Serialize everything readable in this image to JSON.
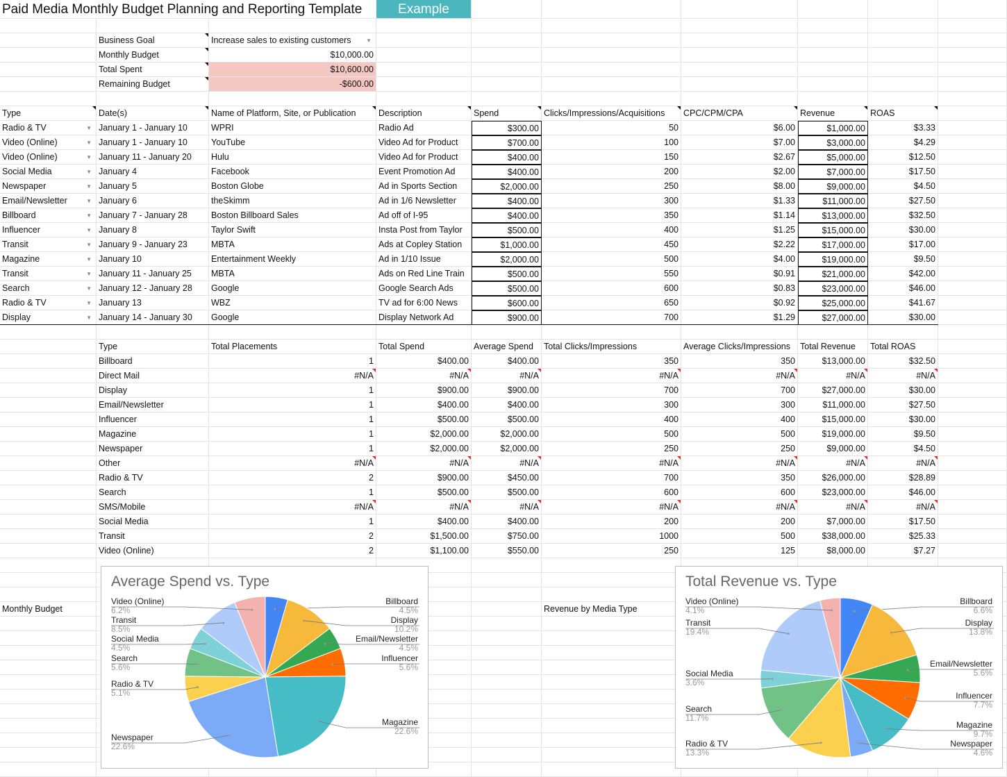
{
  "title": "Paid Media Monthly Budget Planning and Reporting Template",
  "example_label": "Example",
  "summary": [
    {
      "label": "Business Goal",
      "value": "Increase sales to existing customers",
      "dropdown": true
    },
    {
      "label": "Monthly Budget",
      "value": "$10,000.00"
    },
    {
      "label": "Total Spent",
      "value": "$10,600.00",
      "highlight": true
    },
    {
      "label": "Remaining Budget",
      "value": "-$600.00",
      "highlight": true
    }
  ],
  "main_table": {
    "headers": [
      "Type",
      "Date(s)",
      "Name of Platform, Site, or Publication",
      "Description",
      "Spend",
      "Clicks/Impressions/Acquisitions",
      "CPC/CPM/CPA",
      "Revenue",
      "ROAS"
    ],
    "rows": [
      [
        "Radio & TV",
        "January 1 - January 10",
        "WPRI",
        "Radio Ad",
        "$300.00",
        "50",
        "$6.00",
        "$1,000.00",
        "$3.33"
      ],
      [
        "Video (Online)",
        "January 1 - January 10",
        "YouTube",
        "Video Ad for Product",
        "$700.00",
        "100",
        "$7.00",
        "$3,000.00",
        "$4.29"
      ],
      [
        "Video (Online)",
        "January 11 - January 20",
        "Hulu",
        "Video Ad for Product",
        "$400.00",
        "150",
        "$2.67",
        "$5,000.00",
        "$12.50"
      ],
      [
        "Social Media",
        "January 4",
        "Facebook",
        "Event Promotion Ad",
        "$400.00",
        "200",
        "$2.00",
        "$7,000.00",
        "$17.50"
      ],
      [
        "Newspaper",
        "January 5",
        "Boston Globe",
        "Ad in Sports Section",
        "$2,000.00",
        "250",
        "$8.00",
        "$9,000.00",
        "$4.50"
      ],
      [
        "Email/Newsletter",
        "January 6",
        "theSkimm",
        "Ad in 1/6 Newsletter",
        "$400.00",
        "300",
        "$1.33",
        "$11,000.00",
        "$27.50"
      ],
      [
        "Billboard",
        "January 7 - January 28",
        "Boston Billboard Sales",
        "Ad off of I-95",
        "$400.00",
        "350",
        "$1.14",
        "$13,000.00",
        "$32.50"
      ],
      [
        "Influencer",
        "January 8",
        "Taylor Swift",
        "Insta Post from Taylor",
        "$500.00",
        "400",
        "$1.25",
        "$15,000.00",
        "$30.00"
      ],
      [
        "Transit",
        "January 9 - January 23",
        "MBTA",
        "Ads at Copley Station",
        "$1,000.00",
        "450",
        "$2.22",
        "$17,000.00",
        "$17.00"
      ],
      [
        "Magazine",
        "January 10",
        "Entertainment Weekly",
        "Ad in 1/10 Issue",
        "$2,000.00",
        "500",
        "$4.00",
        "$19,000.00",
        "$9.50"
      ],
      [
        "Transit",
        "January 11 - January 25",
        "MBTA",
        "Ads on Red Line Train",
        "$500.00",
        "550",
        "$0.91",
        "$21,000.00",
        "$42.00"
      ],
      [
        "Search",
        "January 12 - January 28",
        "Google",
        "Google Search Ads",
        "$500.00",
        "600",
        "$0.83",
        "$23,000.00",
        "$46.00"
      ],
      [
        "Radio & TV",
        "January 13",
        "WBZ",
        "TV ad for 6:00 News",
        "$600.00",
        "650",
        "$0.92",
        "$25,000.00",
        "$41.67"
      ],
      [
        "Display",
        "January 14 - January 30",
        "Google",
        "Display Network Ad",
        "$900.00",
        "700",
        "$1.29",
        "$27,000.00",
        "$30.00"
      ]
    ]
  },
  "type_table": {
    "headers": [
      "Type",
      "Total Placements",
      "Total Spend",
      "Average Spend",
      "Total Clicks/Impressions",
      "Average Clicks/Impressions",
      "Total Revenue",
      "Total ROAS"
    ],
    "rows": [
      [
        "Billboard",
        "1",
        "$400.00",
        "$400.00",
        "350",
        "350",
        "$13,000.00",
        "$32.50"
      ],
      [
        "Direct Mail",
        "#N/A",
        "#N/A",
        "#N/A",
        "#N/A",
        "#N/A",
        "#N/A",
        "#N/A"
      ],
      [
        "Display",
        "1",
        "$900.00",
        "$900.00",
        "700",
        "700",
        "$27,000.00",
        "$30.00"
      ],
      [
        "Email/Newsletter",
        "1",
        "$400.00",
        "$400.00",
        "300",
        "300",
        "$11,000.00",
        "$27.50"
      ],
      [
        "Influencer",
        "1",
        "$500.00",
        "$500.00",
        "400",
        "400",
        "$15,000.00",
        "$30.00"
      ],
      [
        "Magazine",
        "1",
        "$2,000.00",
        "$2,000.00",
        "500",
        "500",
        "$19,000.00",
        "$9.50"
      ],
      [
        "Newspaper",
        "1",
        "$2,000.00",
        "$2,000.00",
        "250",
        "250",
        "$9,000.00",
        "$4.50"
      ],
      [
        "Other",
        "#N/A",
        "#N/A",
        "#N/A",
        "#N/A",
        "#N/A",
        "#N/A",
        "#N/A"
      ],
      [
        "Radio & TV",
        "2",
        "$900.00",
        "$450.00",
        "700",
        "350",
        "$26,000.00",
        "$28.89"
      ],
      [
        "Search",
        "1",
        "$500.00",
        "$500.00",
        "600",
        "600",
        "$23,000.00",
        "$46.00"
      ],
      [
        "SMS/Mobile",
        "#N/A",
        "#N/A",
        "#N/A",
        "#N/A",
        "#N/A",
        "#N/A",
        "#N/A"
      ],
      [
        "Social Media",
        "1",
        "$400.00",
        "$400.00",
        "200",
        "200",
        "$7,000.00",
        "$17.50"
      ],
      [
        "Transit",
        "2",
        "$1,500.00",
        "$750.00",
        "1000",
        "500",
        "$38,000.00",
        "$25.33"
      ],
      [
        "Video (Online)",
        "2",
        "$1,100.00",
        "$550.00",
        "250",
        "125",
        "$8,000.00",
        "$7.27"
      ]
    ]
  },
  "chart_labels": {
    "left": "Monthly Budget",
    "right": "Revenue by Media Type"
  },
  "chart_data": [
    {
      "type": "pie",
      "title": "Average Spend vs. Type",
      "categories": [
        "Billboard",
        "Display",
        "Email/Newsletter",
        "Influencer",
        "Magazine",
        "Newspaper",
        "Radio & TV",
        "Search",
        "Social Media",
        "Transit",
        "Video (Online)"
      ],
      "values": [
        4.5,
        10.2,
        4.5,
        5.6,
        22.6,
        22.6,
        5.1,
        5.6,
        4.5,
        8.5,
        6.2
      ],
      "labels": [
        "4.5%",
        "10.2%",
        "4.5%",
        "5.6%",
        "22.6%",
        "22.6%",
        "5.1%",
        "5.6%",
        "4.5%",
        "8.5%",
        "6.2%"
      ]
    },
    {
      "type": "pie",
      "title": "Total Revenue vs. Type",
      "categories": [
        "Billboard",
        "Display",
        "Email/Newsletter",
        "Influencer",
        "Magazine",
        "Newspaper",
        "Radio & TV",
        "Search",
        "Social Media",
        "Transit",
        "Video (Online)"
      ],
      "values": [
        6.6,
        13.8,
        5.6,
        7.7,
        9.7,
        4.6,
        13.3,
        11.7,
        3.6,
        19.4,
        4.1
      ],
      "labels": [
        "6.6%",
        "13.8%",
        "5.6%",
        "7.7%",
        "9.7%",
        "4.6%",
        "13.3%",
        "11.7%",
        "3.6%",
        "19.4%",
        "4.1%"
      ]
    }
  ],
  "colors": {
    "accent": "#4bb6bd",
    "highlight": "#f4c7c3",
    "slices": [
      "#4285f4",
      "#f6b93b",
      "#34a853",
      "#ff6d01",
      "#46bdc6",
      "#7baaf7",
      "#fcd04f",
      "#71c287",
      "#7ed1d7",
      "#aecbfa",
      "#f4b2ae"
    ]
  }
}
